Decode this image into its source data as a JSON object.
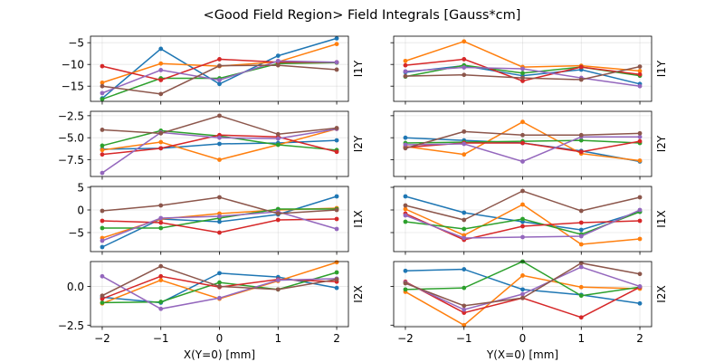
{
  "figure": {
    "title": "<Good Field Region> Field Integrals [Gauss*cm]"
  },
  "colors": [
    "#1f77b4",
    "#ff7f0e",
    "#2ca02c",
    "#d62728",
    "#9467bd",
    "#8c564b"
  ],
  "chart_data": [
    {
      "type": "line",
      "id": "i1y-x",
      "ylabel": "I1Y",
      "xlabel": "",
      "x": [
        -2,
        -1,
        0,
        1,
        2
      ],
      "xlim": [
        -2.2,
        2.2
      ],
      "ylim": [
        -18.5,
        -3.5
      ],
      "grid": true,
      "yticks": [
        -5,
        -10,
        -15
      ],
      "ytick_labels": [
        "−5",
        "−10",
        "−15"
      ],
      "xticks": [
        -2,
        -1,
        0,
        1,
        2
      ],
      "xtick_labels": [],
      "series": [
        {
          "name": "s1",
          "values": [
            -17.8,
            -6.4,
            -14.5,
            -8.0,
            -4.0
          ]
        },
        {
          "name": "s2",
          "values": [
            -14.2,
            -9.8,
            -10.4,
            -9.4,
            -5.3
          ]
        },
        {
          "name": "s3",
          "values": [
            -18.0,
            -13.2,
            -13.2,
            -9.8,
            -9.6
          ]
        },
        {
          "name": "s4",
          "values": [
            -10.4,
            -13.6,
            -8.8,
            -9.5,
            -9.5
          ]
        },
        {
          "name": "s5",
          "values": [
            -16.6,
            -11.3,
            -13.6,
            -9.2,
            -9.5
          ]
        },
        {
          "name": "s6",
          "values": [
            -15.0,
            -16.8,
            -10.3,
            -10.2,
            -11.2
          ]
        }
      ]
    },
    {
      "type": "line",
      "id": "i1y-y",
      "ylabel": "I1Y",
      "xlabel": "",
      "x": [
        -2,
        -1,
        0,
        1,
        2
      ],
      "xlim": [
        -2.2,
        2.2
      ],
      "ylim": [
        -18.5,
        -3.5
      ],
      "grid": true,
      "yticks": [
        -5,
        -10,
        -15
      ],
      "ytick_labels": [],
      "xticks": [
        -2,
        -1,
        0,
        1,
        2
      ],
      "xtick_labels": [],
      "series": [
        {
          "name": "s1",
          "values": [
            -11.8,
            -10.3,
            -12.6,
            -11.2,
            -14.5
          ]
        },
        {
          "name": "s2",
          "values": [
            -9.2,
            -4.7,
            -10.6,
            -10.3,
            -11.5
          ]
        },
        {
          "name": "s3",
          "values": [
            -12.8,
            -10.2,
            -12.0,
            -10.6,
            -12.6
          ]
        },
        {
          "name": "s4",
          "values": [
            -10.2,
            -8.8,
            -13.8,
            -10.6,
            -12.3
          ]
        },
        {
          "name": "s5",
          "values": [
            -11.6,
            -10.7,
            -11.0,
            -13.1,
            -15.0
          ]
        },
        {
          "name": "s6",
          "values": [
            -12.7,
            -12.4,
            -13.1,
            -13.5,
            -10.5
          ]
        }
      ]
    },
    {
      "type": "line",
      "id": "i2y-x",
      "ylabel": "I2Y",
      "xlabel": "",
      "x": [
        -2,
        -1,
        0,
        1,
        2
      ],
      "xlim": [
        -2.2,
        2.2
      ],
      "ylim": [
        -9.4,
        -2.0
      ],
      "grid": true,
      "yticks": [
        -2.5,
        -5.0,
        -7.5
      ],
      "ytick_labels": [
        "−2.5",
        "−5.0",
        "−7.5"
      ],
      "xticks": [
        -2,
        -1,
        0,
        1,
        2
      ],
      "xtick_labels": [],
      "series": [
        {
          "name": "s1",
          "values": [
            -6.3,
            -6.2,
            -5.7,
            -5.6,
            -5.3
          ]
        },
        {
          "name": "s2",
          "values": [
            -6.4,
            -5.5,
            -7.5,
            -5.8,
            -4.0
          ]
        },
        {
          "name": "s3",
          "values": [
            -5.9,
            -4.2,
            -4.8,
            -5.8,
            -6.4
          ]
        },
        {
          "name": "s4",
          "values": [
            -6.9,
            -6.2,
            -4.7,
            -4.9,
            -6.6
          ]
        },
        {
          "name": "s5",
          "values": [
            -9.0,
            -4.4,
            -5.0,
            -5.1,
            -4.0
          ]
        },
        {
          "name": "s6",
          "values": [
            -4.1,
            -4.5,
            -2.5,
            -4.6,
            -3.9
          ]
        }
      ]
    },
    {
      "type": "line",
      "id": "i2y-y",
      "ylabel": "I2Y",
      "xlabel": "",
      "x": [
        -2,
        -1,
        0,
        1,
        2
      ],
      "xlim": [
        -2.2,
        2.2
      ],
      "ylim": [
        -9.4,
        -2.0
      ],
      "grid": true,
      "yticks": [
        -2.5,
        -5.0,
        -7.5
      ],
      "ytick_labels": [],
      "xticks": [
        -2,
        -1,
        0,
        1,
        2
      ],
      "xtick_labels": [],
      "series": [
        {
          "name": "s1",
          "values": [
            -5.0,
            -5.3,
            -5.6,
            -6.5,
            -7.7
          ]
        },
        {
          "name": "s2",
          "values": [
            -6.0,
            -6.9,
            -3.2,
            -6.8,
            -7.6
          ]
        },
        {
          "name": "s3",
          "values": [
            -5.6,
            -5.5,
            -5.4,
            -5.3,
            -5.6
          ]
        },
        {
          "name": "s4",
          "values": [
            -6.1,
            -5.6,
            -5.6,
            -6.6,
            -5.4
          ]
        },
        {
          "name": "s5",
          "values": [
            -5.8,
            -5.7,
            -7.7,
            -4.9,
            -4.9
          ]
        },
        {
          "name": "s6",
          "values": [
            -6.2,
            -4.3,
            -4.7,
            -4.7,
            -4.5
          ]
        }
      ]
    },
    {
      "type": "line",
      "id": "i1x-x",
      "ylabel": "I1X",
      "xlabel": "",
      "x": [
        -2,
        -1,
        0,
        1,
        2
      ],
      "xlim": [
        -2.2,
        2.2
      ],
      "ylim": [
        -9.2,
        5.2
      ],
      "grid": true,
      "yticks": [
        5,
        0,
        -5
      ],
      "ytick_labels": [
        "5",
        "0",
        "−5"
      ],
      "xticks": [
        -2,
        -1,
        0,
        1,
        2
      ],
      "xtick_labels": [],
      "series": [
        {
          "name": "s1",
          "values": [
            -8.2,
            -2.0,
            -2.6,
            -1.0,
            3.0
          ]
        },
        {
          "name": "s2",
          "values": [
            -6.2,
            -2.0,
            -0.8,
            0.0,
            0.4
          ]
        },
        {
          "name": "s3",
          "values": [
            -4.0,
            -4.0,
            -1.8,
            0.2,
            0.2
          ]
        },
        {
          "name": "s4",
          "values": [
            -2.4,
            -2.8,
            -5.0,
            -2.2,
            -2.0
          ]
        },
        {
          "name": "s5",
          "values": [
            -6.8,
            -1.8,
            -1.4,
            -0.4,
            -4.2
          ]
        },
        {
          "name": "s6",
          "values": [
            -0.2,
            1.0,
            2.8,
            -0.8,
            0.0
          ]
        }
      ]
    },
    {
      "type": "line",
      "id": "i1x-y",
      "ylabel": "I1X",
      "xlabel": "",
      "x": [
        -2,
        -1,
        0,
        1,
        2
      ],
      "xlim": [
        -2.2,
        2.2
      ],
      "ylim": [
        -9.2,
        5.2
      ],
      "grid": true,
      "yticks": [
        5,
        0,
        -5
      ],
      "ytick_labels": [],
      "xticks": [
        -2,
        -1,
        0,
        1,
        2
      ],
      "xtick_labels": [],
      "series": [
        {
          "name": "s1",
          "values": [
            3.0,
            -0.6,
            -2.6,
            -4.4,
            -0.4
          ]
        },
        {
          "name": "s2",
          "values": [
            0.2,
            -5.6,
            1.2,
            -7.6,
            -6.4
          ]
        },
        {
          "name": "s3",
          "values": [
            -2.6,
            -4.2,
            -2.0,
            -5.4,
            -0.4
          ]
        },
        {
          "name": "s4",
          "values": [
            -0.8,
            -6.6,
            -3.6,
            -2.8,
            -2.4
          ]
        },
        {
          "name": "s5",
          "values": [
            -1.2,
            -6.2,
            -6.0,
            -5.8,
            0.0
          ]
        },
        {
          "name": "s6",
          "values": [
            1.0,
            -2.2,
            4.2,
            -0.2,
            2.8
          ]
        }
      ]
    },
    {
      "type": "line",
      "id": "i2x-x",
      "ylabel": "I2X",
      "xlabel": "X(Y=0) [mm]",
      "x": [
        -2,
        -1,
        0,
        1,
        2
      ],
      "xlim": [
        -2.2,
        2.2
      ],
      "ylim": [
        -2.6,
        1.6
      ],
      "grid": true,
      "yticks": [
        0.0,
        -2.5
      ],
      "ytick_labels": [
        "0.0",
        "−2.5"
      ],
      "xticks": [
        -2,
        -1,
        0,
        1,
        2
      ],
      "xtick_labels": [
        "−2",
        "−1",
        "0",
        "1",
        "2"
      ],
      "series": [
        {
          "name": "s1",
          "values": [
            -0.7,
            -1.05,
            0.85,
            0.6,
            -0.1
          ]
        },
        {
          "name": "s2",
          "values": [
            -1.1,
            0.4,
            -0.8,
            0.35,
            1.55
          ]
        },
        {
          "name": "s3",
          "values": [
            -1.05,
            -1.0,
            0.25,
            -0.2,
            0.9
          ]
        },
        {
          "name": "s4",
          "values": [
            -0.8,
            0.65,
            -0.05,
            0.45,
            0.3
          ]
        },
        {
          "name": "s5",
          "values": [
            0.65,
            -1.45,
            -0.75,
            0.4,
            0.5
          ]
        },
        {
          "name": "s6",
          "values": [
            -0.6,
            1.3,
            0.0,
            -0.2,
            0.45
          ]
        }
      ]
    },
    {
      "type": "line",
      "id": "i2x-y",
      "ylabel": "I2X",
      "xlabel": "Y(X=0) [mm]",
      "x": [
        -2,
        -1,
        0,
        1,
        2
      ],
      "xlim": [
        -2.2,
        2.2
      ],
      "ylim": [
        -2.6,
        1.6
      ],
      "grid": true,
      "yticks": [
        0.0,
        -2.5
      ],
      "ytick_labels": [],
      "xticks": [
        -2,
        -1,
        0,
        1,
        2
      ],
      "xtick_labels": [
        "−2",
        "−1",
        "0",
        "1",
        "2"
      ],
      "series": [
        {
          "name": "s1",
          "values": [
            1.0,
            1.1,
            -0.2,
            -0.55,
            -1.1
          ]
        },
        {
          "name": "s2",
          "values": [
            -0.35,
            -2.5,
            0.7,
            -0.05,
            -0.15
          ]
        },
        {
          "name": "s3",
          "values": [
            -0.2,
            -0.1,
            1.6,
            -0.6,
            -0.05
          ]
        },
        {
          "name": "s4",
          "values": [
            0.3,
            -1.7,
            -0.75,
            -2.0,
            -0.05
          ]
        },
        {
          "name": "s5",
          "values": [
            0.25,
            -1.5,
            -0.5,
            1.25,
            0.0
          ]
        },
        {
          "name": "s6",
          "values": [
            0.2,
            -1.25,
            -0.75,
            1.5,
            0.8
          ]
        }
      ]
    }
  ]
}
